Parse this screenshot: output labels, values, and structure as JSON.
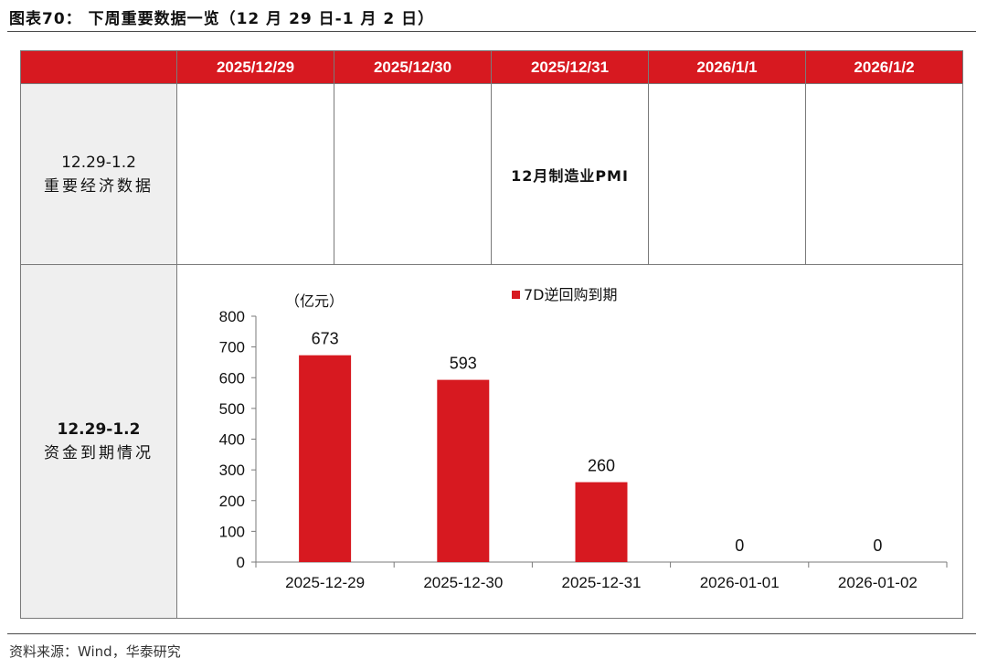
{
  "figure_title": "图表70：  下周重要数据一览（12 月 29 日-1 月 2 日）",
  "table": {
    "headers": [
      "2025/12/29",
      "2025/12/30",
      "2025/12/31",
      "2026/1/1",
      "2026/1/2"
    ],
    "rows": [
      {
        "label_line1": "12.29-1.2",
        "label_line2": "重要经济数据",
        "cells": [
          "",
          "",
          "12月制造业PMI",
          "",
          ""
        ]
      },
      {
        "label_line1": "12.29-1.2",
        "label_line2": "资金到期情况"
      }
    ]
  },
  "source": "资料来源：Wind，华泰研究",
  "colors": {
    "accent": "#d71920",
    "rowhead_bg": "#efefef"
  },
  "chart_data": {
    "type": "bar",
    "unit_label": "（亿元）",
    "legend": "7D逆回购到期",
    "legend_position": "top-center",
    "categories": [
      "2025-12-29",
      "2025-12-30",
      "2025-12-31",
      "2026-01-01",
      "2026-01-02"
    ],
    "series": [
      {
        "name": "7D逆回购到期",
        "values": [
          673,
          593,
          260,
          0,
          0
        ]
      }
    ],
    "data_labels": [
      "673",
      "593",
      "260",
      "0",
      "0"
    ],
    "ylim": [
      0,
      800
    ],
    "yticks": [
      0,
      100,
      200,
      300,
      400,
      500,
      600,
      700,
      800
    ],
    "grid": false,
    "bar_color": "#d71920"
  }
}
